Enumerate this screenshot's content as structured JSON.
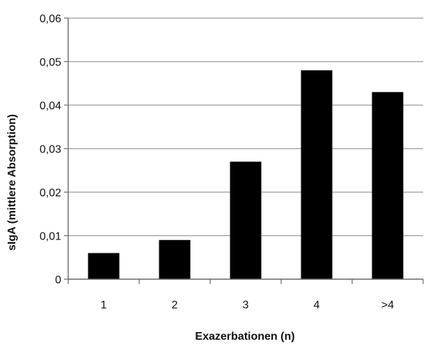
{
  "chart_data": {
    "type": "bar",
    "categories": [
      "1",
      "2",
      "3",
      "4",
      ">4"
    ],
    "values": [
      0.006,
      0.009,
      0.027,
      0.048,
      0.043
    ],
    "xlabel": "Exazerbationen (n)",
    "ylabel": "sIgA (mittlere Absorption)",
    "ylim": [
      0,
      0.06
    ],
    "yticks": [
      0,
      0.01,
      0.02,
      0.03,
      0.04,
      0.05,
      0.06
    ],
    "ytick_labels": [
      "0",
      "0,01",
      "0,02",
      "0,03",
      "0,04",
      "0,05",
      "0,06"
    ],
    "grid": true,
    "legend": "none",
    "colors": {
      "bar": "#000000",
      "grid": "#999999",
      "axis": "#666666"
    }
  }
}
